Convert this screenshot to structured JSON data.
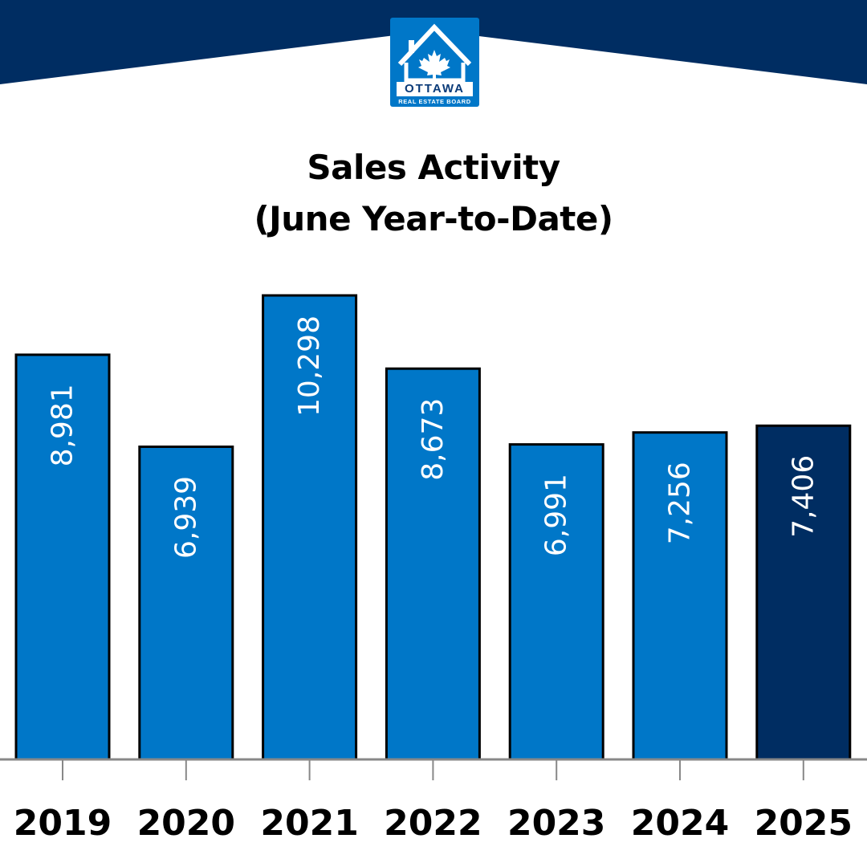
{
  "logo": {
    "name": "OTTAWA",
    "subtitle": "REAL ESTATE BOARD"
  },
  "colors": {
    "banner": "#002d62",
    "bar": "#0077c8",
    "bar_highlight": "#002d62",
    "bar_outline": "#000000",
    "bar_label": "#ffffff",
    "axis": "#888888"
  },
  "chart_data": {
    "type": "bar",
    "title": "Sales Activity",
    "subtitle": "(June Year-to-Date)",
    "categories": [
      "2019",
      "2020",
      "2021",
      "2022",
      "2023",
      "2024",
      "2025"
    ],
    "values": [
      8981,
      6939,
      10298,
      8673,
      6991,
      7256,
      7406
    ],
    "value_labels": [
      "8,981",
      "6,939",
      "10,298",
      "8,673",
      "6,991",
      "7,256",
      "7,406"
    ],
    "highlight_category": "2025",
    "ylim": [
      0,
      10298
    ],
    "grid": false,
    "legend": "none"
  }
}
